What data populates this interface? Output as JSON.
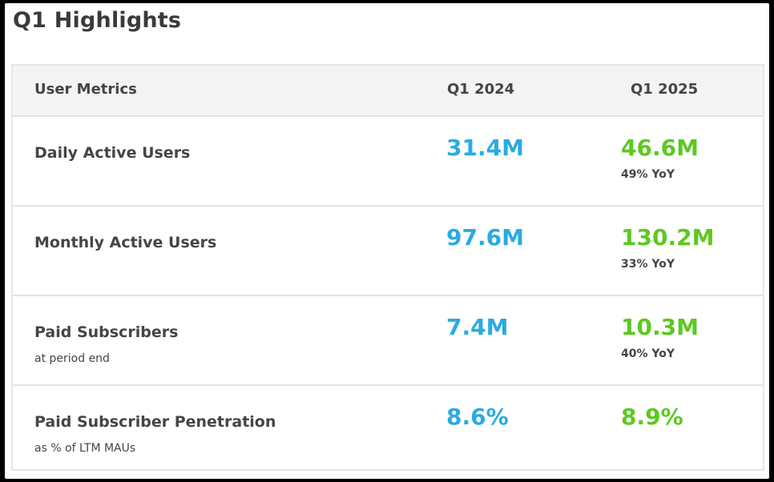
{
  "title": "Q1 Highlights",
  "colors": {
    "q1_2024": "#29abe2",
    "q1_2025": "#5cc91f"
  },
  "table": {
    "headers": {
      "metric": "User Metrics",
      "q1_2024": "Q1 2024",
      "q1_2025": "Q1 2025"
    },
    "rows": [
      {
        "label": "Daily Active Users",
        "sublabel": "",
        "q1_2024": "31.4M",
        "q1_2025": "46.6M",
        "yoy": "49% YoY"
      },
      {
        "label": "Monthly Active Users",
        "sublabel": "",
        "q1_2024": "97.6M",
        "q1_2025": "130.2M",
        "yoy": "33% YoY"
      },
      {
        "label": "Paid Subscribers",
        "sublabel": "at period end",
        "q1_2024": "7.4M",
        "q1_2025": "10.3M",
        "yoy": "40% YoY"
      },
      {
        "label": "Paid Subscriber Penetration",
        "sublabel": "as % of LTM MAUs",
        "q1_2024": "8.6%",
        "q1_2025": "8.9%",
        "yoy": ""
      }
    ]
  }
}
